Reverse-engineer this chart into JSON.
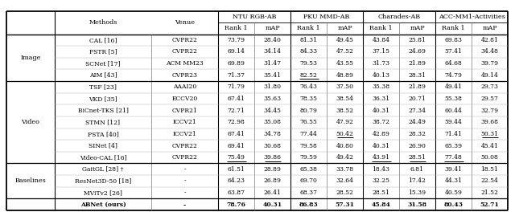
{
  "col_groups": [
    {
      "label": "NTU RGB-AB",
      "subcols": [
        "Rank 1",
        "mAP"
      ]
    },
    {
      "label": "PKU MMD-AB",
      "subcols": [
        "Rank 1",
        "mAP"
      ]
    },
    {
      "label": "Charades-AB",
      "subcols": [
        "Rank 1",
        "mAP"
      ]
    },
    {
      "label": "ACC-MM1-Activities",
      "subcols": [
        "Rank 1",
        "mAP"
      ]
    }
  ],
  "row_groups": [
    {
      "group": "Image",
      "rows": [
        {
          "method": "CAL [16]",
          "venue": "CVPR22",
          "data": [
            "73.79",
            "28.40",
            "81.31",
            "49.45",
            "43.84",
            "25.81",
            "69.83",
            "42.81"
          ],
          "underline": [],
          "bold": false
        },
        {
          "method": "PSTR [5]",
          "venue": "CVPR22",
          "data": [
            "69.14",
            "34.14",
            "84.33",
            "47.52",
            "37.15",
            "24.69",
            "57.41",
            "34.48"
          ],
          "underline": [],
          "bold": false
        },
        {
          "method": "SCNet [17]",
          "venue": "ACM MM23",
          "data": [
            "69.89",
            "31.47",
            "79.53",
            "43.55",
            "31.73",
            "21.89",
            "64.68",
            "39.79"
          ],
          "underline": [],
          "bold": false
        },
        {
          "method": "AIM [43]",
          "venue": "CVPR23",
          "data": [
            "71.37",
            "35.41",
            "82.52",
            "48.89",
            "40.13",
            "28.31",
            "74.79",
            "49.14"
          ],
          "underline": [
            2
          ],
          "bold": false
        }
      ]
    },
    {
      "group": "Video",
      "rows": [
        {
          "method": "TSF [23]",
          "venue": "AAAI20",
          "data": [
            "71.79",
            "31.80",
            "76.43",
            "37.50",
            "35.38",
            "21.89",
            "49.41",
            "29.73"
          ],
          "underline": [],
          "bold": false
        },
        {
          "method": "VKD [35]",
          "venue": "ECCV20",
          "data": [
            "67.41",
            "35.63",
            "78.35",
            "38.54",
            "36.31",
            "20.71",
            "55.38",
            "29.57"
          ],
          "underline": [],
          "bold": false
        },
        {
          "method": "BiCnet-TKS [21]",
          "venue": "CVPR21",
          "data": [
            "72.71",
            "34.45",
            "80.79",
            "38.52",
            "40.31",
            "27.34",
            "60.44",
            "32.79"
          ],
          "underline": [],
          "bold": false
        },
        {
          "method": "STMN [12]",
          "venue": "ICCV21",
          "data": [
            "72.98",
            "35.08",
            "76.55",
            "47.92",
            "38.72",
            "24.49",
            "59.44",
            "39.68"
          ],
          "underline": [],
          "bold": false
        },
        {
          "method": "PSTA [40]",
          "venue": "ICCV21",
          "data": [
            "67.41",
            "34.78",
            "77.44",
            "50.42",
            "42.89",
            "28.32",
            "71.41",
            "50.31"
          ],
          "underline": [
            3,
            7
          ],
          "bold": false
        },
        {
          "method": "SINet [4]",
          "venue": "CVPR22",
          "data": [
            "69.41",
            "30.68",
            "79.58",
            "40.80",
            "40.31",
            "26.90",
            "65.39",
            "45.41"
          ],
          "underline": [],
          "bold": false
        },
        {
          "method": "Video-CAL [16]",
          "venue": "CVPR22",
          "data": [
            "75.49",
            "39.86",
            "79.59",
            "49.42",
            "43.91",
            "28.51",
            "77.48",
            "50.08"
          ],
          "underline": [
            0,
            1,
            4,
            5,
            6
          ],
          "bold": false
        }
      ]
    },
    {
      "group": "Baselines",
      "rows": [
        {
          "method": "GaitGL [28] †",
          "venue": "-",
          "data": [
            "61.51",
            "28.89",
            "65.38",
            "33.78",
            "18.43",
            "6.81",
            "39.41",
            "18.51"
          ],
          "underline": [],
          "bold": false
        },
        {
          "method": "ResNet3D-50 [18]",
          "venue": "-",
          "data": [
            "64.23",
            "26.89",
            "69.70",
            "32.64",
            "32.25",
            "17.42",
            "44.31",
            "22.54"
          ],
          "underline": [],
          "bold": false
        },
        {
          "method": "MViTv2 [26]",
          "venue": "-",
          "data": [
            "63.87",
            "26.41",
            "68.37",
            "28.52",
            "28.51",
            "15.39",
            "40.59",
            "21.52"
          ],
          "underline": [],
          "bold": false
        }
      ]
    },
    {
      "group": "",
      "rows": [
        {
          "method": "ABNet (ours)",
          "venue": "-",
          "data": [
            "78.76",
            "40.31",
            "86.83",
            "57.31",
            "45.84",
            "31.58",
            "80.43",
            "52.71"
          ],
          "underline": [],
          "bold": true
        }
      ]
    }
  ],
  "fig_width": 6.4,
  "fig_height": 2.64,
  "dpi": 100
}
